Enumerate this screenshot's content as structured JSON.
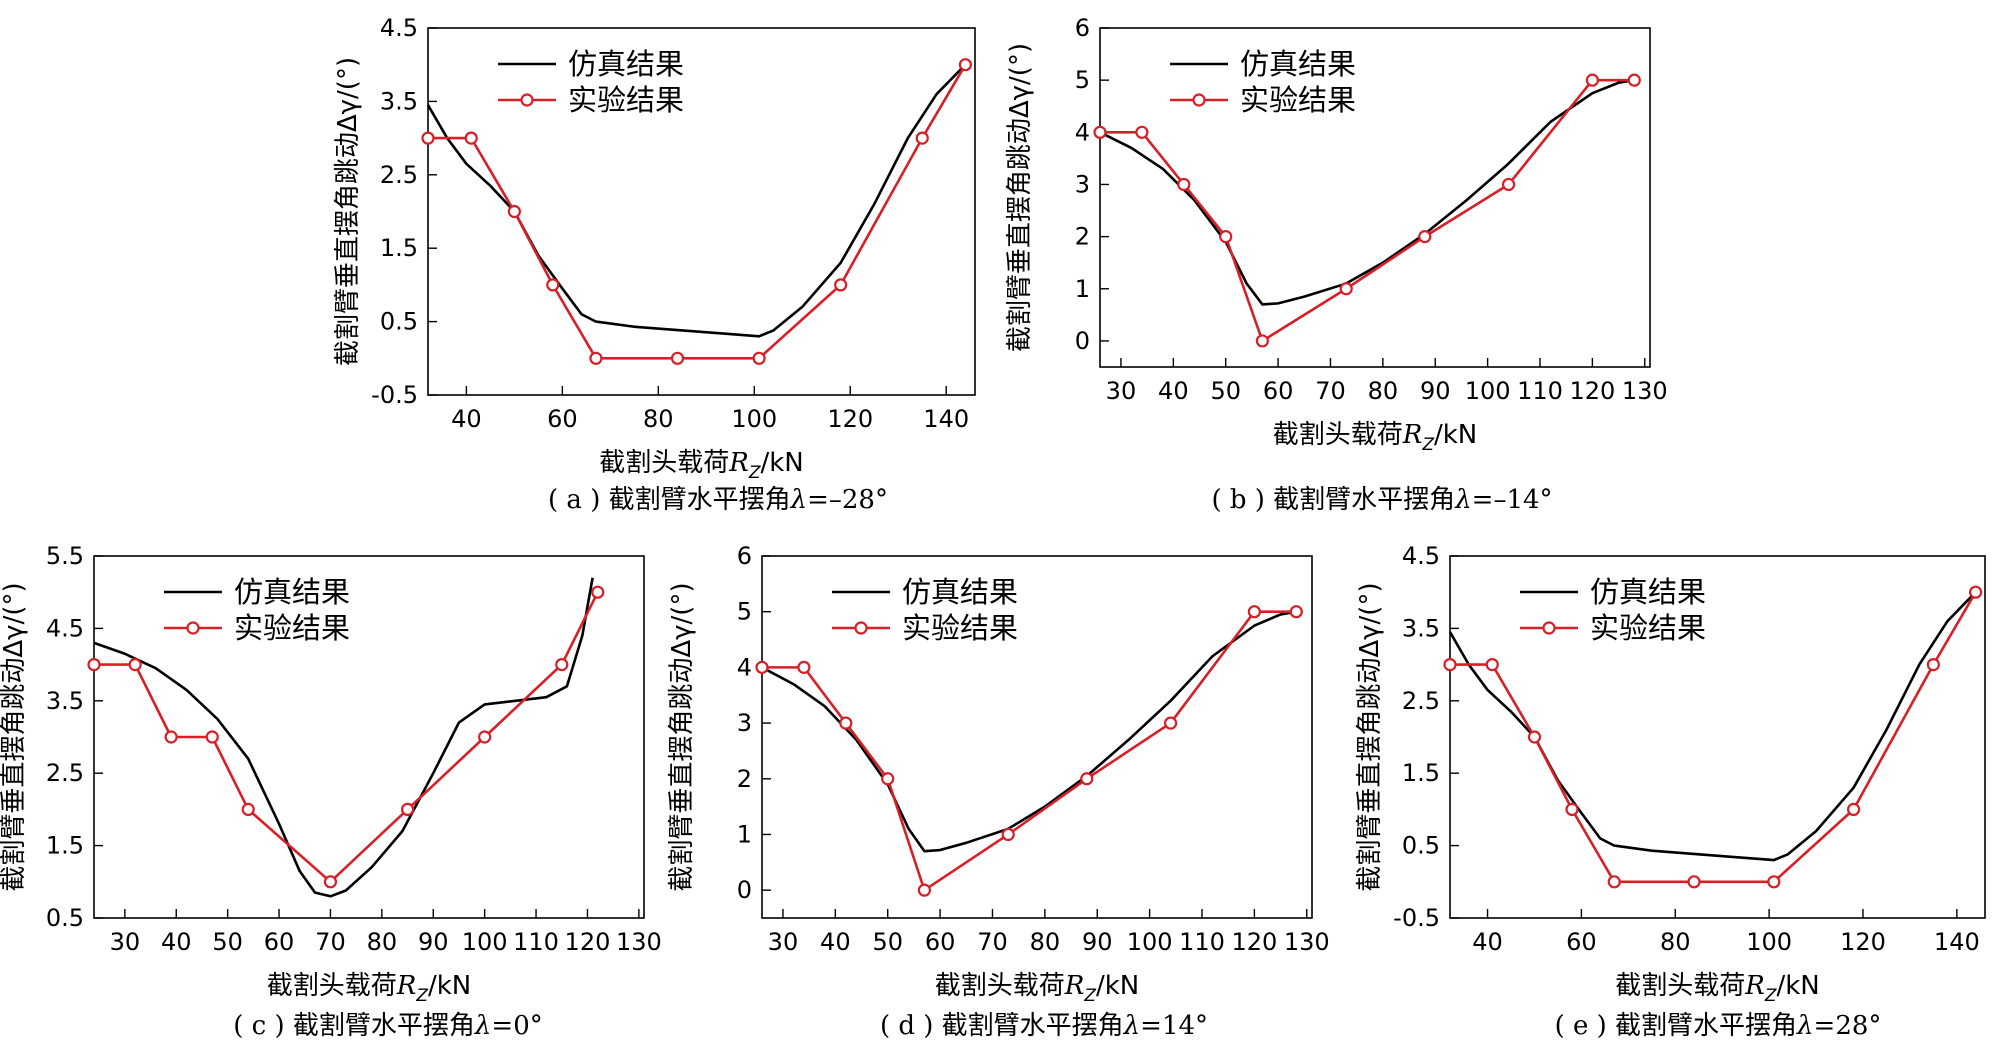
{
  "colors": {
    "simulation": "#000000",
    "experiment": "#d62027"
  },
  "chart_data": [
    {
      "type": "line",
      "caption": "( a ) 截割臂水平摆角λ=–28°",
      "xlabel": "截割头载荷R_Z/kN",
      "ylabel": "截割臂垂直摆角跳动Δγ/(°)",
      "xlim": [
        32,
        146
      ],
      "ylim": [
        -0.5,
        4.5
      ],
      "xticks": [
        40,
        60,
        80,
        100,
        120,
        140
      ],
      "xtick_labels": [
        "40",
        "60",
        "80",
        "100",
        "120",
        "140"
      ],
      "yticks": [
        -0.5,
        0.5,
        1.5,
        2.5,
        3.5,
        4.5
      ],
      "ytick_labels": [
        "-0.5",
        "0.5",
        "1.5",
        "2.5",
        "3.5",
        "4.5"
      ],
      "legend": [
        "仿真结果",
        "实验结果"
      ],
      "legend_position": "top-left",
      "series": [
        {
          "name": "仿真结果",
          "x": [
            32,
            36,
            40,
            45,
            50,
            55,
            60,
            64,
            67,
            75,
            85,
            95,
            101,
            104,
            110,
            118,
            125,
            132,
            138,
            144
          ],
          "y": [
            3.45,
            3.0,
            2.65,
            2.35,
            2.0,
            1.4,
            0.95,
            0.6,
            0.5,
            0.43,
            0.38,
            0.33,
            0.3,
            0.38,
            0.7,
            1.3,
            2.1,
            3.0,
            3.6,
            4.0
          ]
        },
        {
          "name": "实验结果",
          "x": [
            32,
            41,
            50,
            58,
            67,
            84,
            101,
            118,
            135,
            144
          ],
          "y": [
            3.0,
            3.0,
            2.0,
            1.0,
            0.0,
            0.0,
            0.0,
            1.0,
            3.0,
            4.0
          ]
        }
      ]
    },
    {
      "type": "line",
      "caption": "( b ) 截割臂水平摆角λ=–14°",
      "xlabel": "截割头载荷R_Z/kN",
      "ylabel": "截割臂垂直摆角跳动Δγ/(°)",
      "xlim": [
        26,
        131
      ],
      "ylim": [
        -0.5,
        6
      ],
      "xticks": [
        30,
        40,
        50,
        60,
        70,
        80,
        90,
        100,
        110,
        120,
        130
      ],
      "xtick_labels": [
        "30",
        "40",
        "50",
        "60",
        "70",
        "80",
        "90",
        "100",
        "110",
        "120",
        "130"
      ],
      "yticks": [
        0,
        1,
        2,
        3,
        4,
        5,
        6
      ],
      "ytick_labels": [
        "0",
        "1",
        "2",
        "3",
        "4",
        "5",
        "6"
      ],
      "legend": [
        "仿真结果",
        "实验结果"
      ],
      "legend_position": "top-left",
      "series": [
        {
          "name": "仿真结果",
          "x": [
            26,
            32,
            38,
            44,
            50,
            54,
            57,
            60,
            65,
            73,
            80,
            88,
            96,
            104,
            112,
            120,
            125,
            128
          ],
          "y": [
            4.0,
            3.7,
            3.3,
            2.7,
            1.9,
            1.1,
            0.7,
            0.72,
            0.85,
            1.1,
            1.5,
            2.05,
            2.7,
            3.4,
            4.2,
            4.75,
            4.95,
            5.0
          ]
        },
        {
          "name": "实验结果",
          "x": [
            26,
            34,
            42,
            50,
            57,
            73,
            88,
            104,
            120,
            128
          ],
          "y": [
            4.0,
            4.0,
            3.0,
            2.0,
            0.0,
            1.0,
            2.0,
            3.0,
            5.0,
            5.0
          ]
        }
      ]
    },
    {
      "type": "line",
      "caption": "( c ) 截割臂水平摆角λ=0°",
      "xlabel": "截割头载荷R_Z/kN",
      "ylabel": "截割臂垂直摆角跳动Δγ/(°)",
      "xlim": [
        24,
        131
      ],
      "ylim": [
        0.5,
        5.5
      ],
      "xticks": [
        30,
        40,
        50,
        60,
        70,
        80,
        90,
        100,
        110,
        120,
        130
      ],
      "xtick_labels": [
        "30",
        "40",
        "50",
        "60",
        "70",
        "80",
        "90",
        "100",
        "110",
        "120",
        "130"
      ],
      "yticks": [
        0.5,
        1.5,
        2.5,
        3.5,
        4.5,
        5.5
      ],
      "ytick_labels": [
        "0.5",
        "1.5",
        "2.5",
        "3.5",
        "4.5",
        "5.5"
      ],
      "legend": [
        "仿真结果",
        "实验结果"
      ],
      "legend_position": "top-left",
      "series": [
        {
          "name": "仿真结果",
          "x": [
            24,
            30,
            36,
            42,
            48,
            54,
            60,
            64,
            67,
            70,
            73,
            78,
            84,
            90,
            95,
            100,
            106,
            112,
            116,
            119,
            121
          ],
          "y": [
            4.3,
            4.15,
            3.95,
            3.65,
            3.25,
            2.7,
            1.8,
            1.15,
            0.85,
            0.8,
            0.88,
            1.2,
            1.7,
            2.5,
            3.2,
            3.45,
            3.5,
            3.55,
            3.7,
            4.4,
            5.2
          ]
        },
        {
          "name": "实验结果",
          "x": [
            24,
            32,
            39,
            47,
            54,
            70,
            85,
            100,
            115,
            122
          ],
          "y": [
            4.0,
            4.0,
            3.0,
            3.0,
            2.0,
            1.0,
            2.0,
            3.0,
            4.0,
            5.0
          ]
        }
      ]
    },
    {
      "type": "line",
      "caption": "( d ) 截割臂水平摆角λ=14°",
      "xlabel": "截割头载荷R_Z/kN",
      "ylabel": "截割臂垂直摆角跳动Δγ/(°)",
      "xlim": [
        26,
        131
      ],
      "ylim": [
        -0.5,
        6
      ],
      "xticks": [
        30,
        40,
        50,
        60,
        70,
        80,
        90,
        100,
        110,
        120,
        130
      ],
      "xtick_labels": [
        "30",
        "40",
        "50",
        "60",
        "70",
        "80",
        "90",
        "100",
        "110",
        "120",
        "130"
      ],
      "yticks": [
        0,
        1,
        2,
        3,
        4,
        5,
        6
      ],
      "ytick_labels": [
        "0",
        "1",
        "2",
        "3",
        "4",
        "5",
        "6"
      ],
      "legend": [
        "仿真结果",
        "实验结果"
      ],
      "legend_position": "top-left",
      "series": [
        {
          "name": "仿真结果",
          "x": [
            26,
            32,
            38,
            44,
            50,
            54,
            57,
            60,
            65,
            73,
            80,
            88,
            96,
            104,
            112,
            120,
            125,
            128
          ],
          "y": [
            4.0,
            3.7,
            3.3,
            2.7,
            1.9,
            1.1,
            0.7,
            0.72,
            0.85,
            1.1,
            1.5,
            2.05,
            2.7,
            3.4,
            4.2,
            4.75,
            4.95,
            5.0
          ]
        },
        {
          "name": "实验结果",
          "x": [
            26,
            34,
            42,
            50,
            57,
            73,
            88,
            104,
            120,
            128
          ],
          "y": [
            4.0,
            4.0,
            3.0,
            2.0,
            0.0,
            1.0,
            2.0,
            3.0,
            5.0,
            5.0
          ]
        }
      ]
    },
    {
      "type": "line",
      "caption": "( e ) 截割臂水平摆角λ=28°",
      "xlabel": "截割头载荷R_Z/kN",
      "ylabel": "截割臂垂直摆角跳动Δγ/(°)",
      "xlim": [
        32,
        146
      ],
      "ylim": [
        -0.5,
        4.5
      ],
      "xticks": [
        40,
        60,
        80,
        100,
        120,
        140
      ],
      "xtick_labels": [
        "40",
        "60",
        "80",
        "100",
        "120",
        "140"
      ],
      "yticks": [
        -0.5,
        0.5,
        1.5,
        2.5,
        3.5,
        4.5
      ],
      "ytick_labels": [
        "-0.5",
        "0.5",
        "1.5",
        "2.5",
        "3.5",
        "4.5"
      ],
      "legend": [
        "仿真结果",
        "实验结果"
      ],
      "legend_position": "top-left",
      "series": [
        {
          "name": "仿真结果",
          "x": [
            32,
            36,
            40,
            45,
            50,
            55,
            60,
            64,
            67,
            75,
            85,
            95,
            101,
            104,
            110,
            118,
            125,
            132,
            138,
            144
          ],
          "y": [
            3.45,
            3.0,
            2.65,
            2.35,
            2.0,
            1.4,
            0.95,
            0.6,
            0.5,
            0.43,
            0.38,
            0.33,
            0.3,
            0.38,
            0.7,
            1.3,
            2.1,
            3.0,
            3.6,
            4.0
          ]
        },
        {
          "name": "实验结果",
          "x": [
            32,
            41,
            50,
            58,
            67,
            84,
            101,
            118,
            135,
            144
          ],
          "y": [
            3.0,
            3.0,
            2.0,
            1.0,
            0.0,
            0.0,
            0.0,
            1.0,
            3.0,
            4.0
          ]
        }
      ]
    }
  ]
}
